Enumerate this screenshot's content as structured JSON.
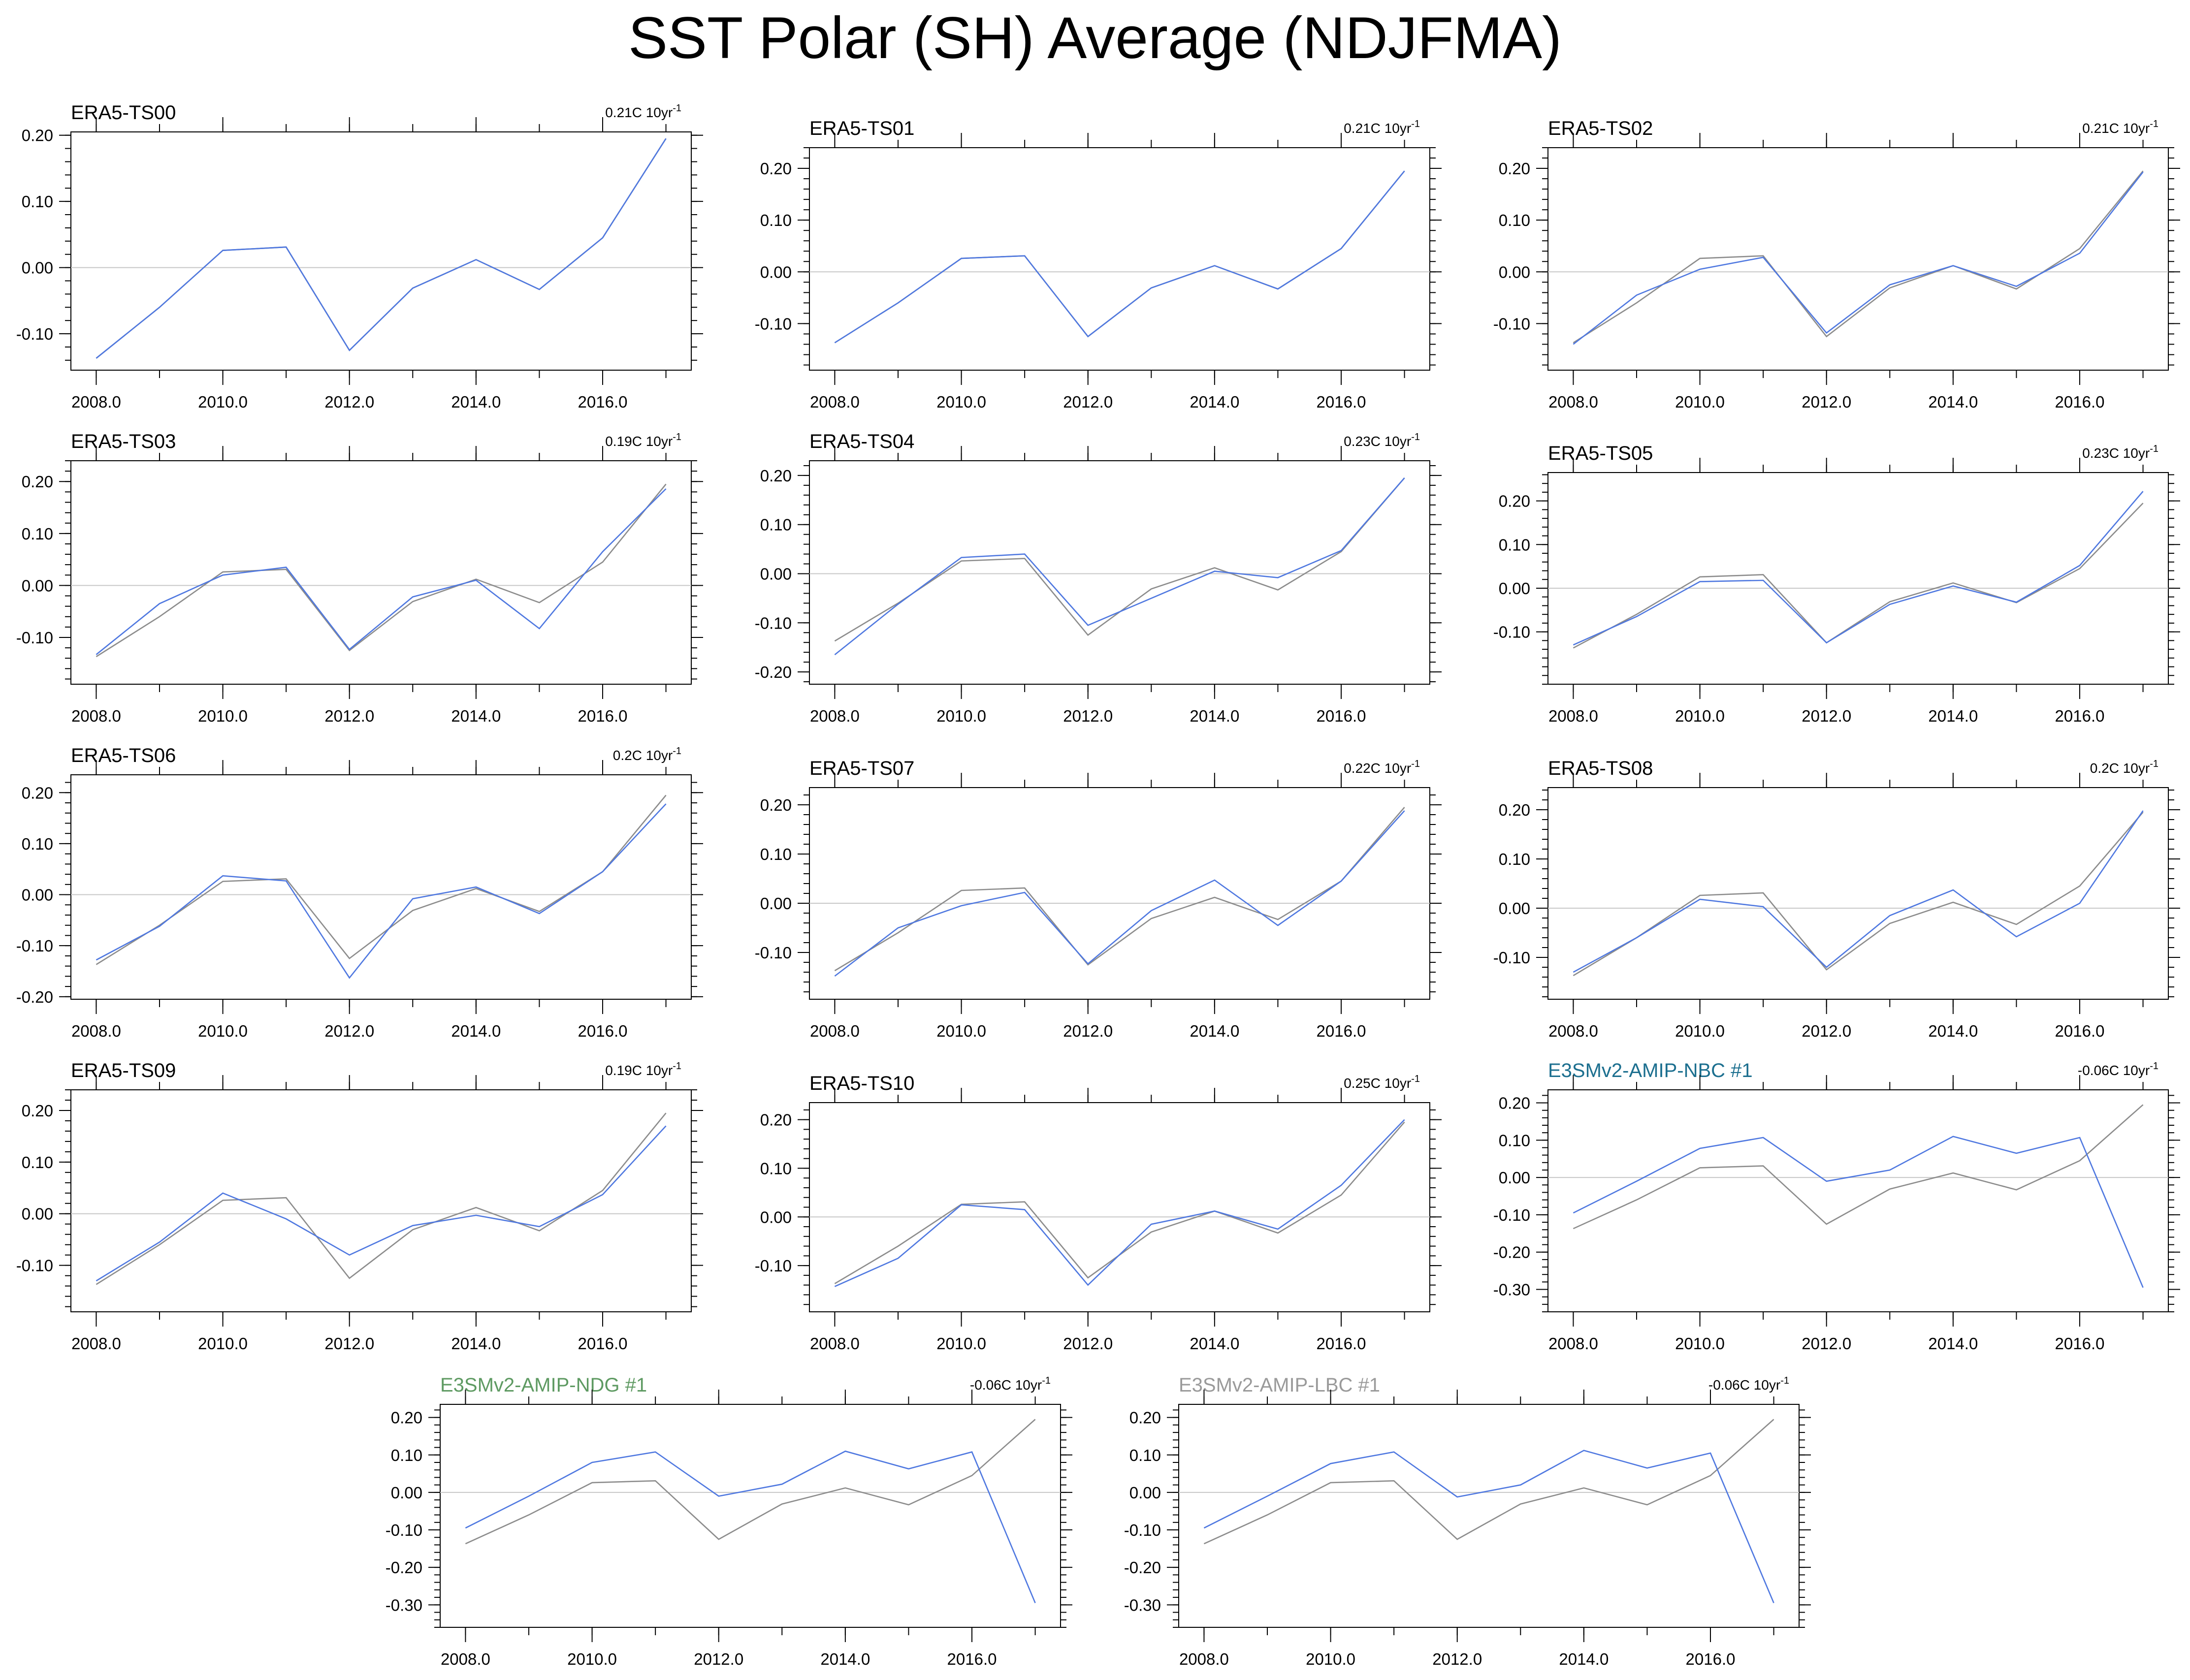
{
  "title": "SST Polar (SH) Average (NDJFMA)",
  "colors": {
    "model": "#4f78e0",
    "reference": "#8c8c8c",
    "zero_line": "#c8c8c8",
    "nbc_title": "#1c6f8f",
    "ndg_title": "#5e9a62",
    "lbc_title": "#9a9a9a"
  },
  "chart_data": [
    {
      "type": "line",
      "title": "ERA5-TS00",
      "trend": "0.21C 10yr",
      "trend_sup": "-1",
      "title_color": "#000000",
      "xlim": [
        2007.6,
        2017.4
      ],
      "ylim": [
        -0.155,
        0.205
      ],
      "xticks": [
        2008,
        2010,
        2012,
        2014,
        2016
      ],
      "xtick_labels": [
        "2008.0",
        "2010.0",
        "2012.0",
        "2014.0",
        "2016.0"
      ],
      "yticks": [
        -0.1,
        0,
        0.1,
        0.2
      ],
      "ytick_labels": [
        "-0.10",
        "0.00",
        "0.10",
        "0.20"
      ],
      "x": [
        2008,
        2009,
        2010,
        2011,
        2012,
        2013,
        2014,
        2015,
        2016,
        2017
      ],
      "series": [
        {
          "name": "reference",
          "values": [
            -0.137,
            -0.06,
            0.026,
            0.031,
            -0.125,
            -0.031,
            0.012,
            -0.033,
            0.045,
            0.195
          ]
        },
        {
          "name": "model",
          "values": [
            -0.137,
            -0.06,
            0.026,
            0.031,
            -0.125,
            -0.031,
            0.012,
            -0.033,
            0.045,
            0.195
          ]
        }
      ]
    },
    {
      "type": "line",
      "title": "ERA5-TS01",
      "trend": "0.21C 10yr",
      "trend_sup": "-1",
      "title_color": "#000000",
      "xlim": [
        2007.6,
        2017.4
      ],
      "ylim": [
        -0.19,
        0.24
      ],
      "xticks": [
        2008,
        2010,
        2012,
        2014,
        2016
      ],
      "xtick_labels": [
        "2008.0",
        "2010.0",
        "2012.0",
        "2014.0",
        "2016.0"
      ],
      "yticks": [
        -0.1,
        0,
        0.1,
        0.2
      ],
      "ytick_labels": [
        "-0.10",
        "0.00",
        "0.10",
        "0.20"
      ],
      "x": [
        2008,
        2009,
        2010,
        2011,
        2012,
        2013,
        2014,
        2015,
        2016,
        2017
      ],
      "series": [
        {
          "name": "reference",
          "values": [
            -0.137,
            -0.06,
            0.026,
            0.031,
            -0.125,
            -0.031,
            0.012,
            -0.033,
            0.045,
            0.195
          ]
        },
        {
          "name": "model",
          "values": [
            -0.137,
            -0.06,
            0.026,
            0.031,
            -0.125,
            -0.031,
            0.012,
            -0.033,
            0.045,
            0.195
          ]
        }
      ]
    },
    {
      "type": "line",
      "title": "ERA5-TS02",
      "trend": "0.21C 10yr",
      "trend_sup": "-1",
      "title_color": "#000000",
      "xlim": [
        2007.6,
        2017.4
      ],
      "ylim": [
        -0.19,
        0.24
      ],
      "xticks": [
        2008,
        2010,
        2012,
        2014,
        2016
      ],
      "xtick_labels": [
        "2008.0",
        "2010.0",
        "2012.0",
        "2014.0",
        "2016.0"
      ],
      "yticks": [
        -0.1,
        0,
        0.1,
        0.2
      ],
      "ytick_labels": [
        "-0.10",
        "0.00",
        "0.10",
        "0.20"
      ],
      "x": [
        2008,
        2009,
        2010,
        2011,
        2012,
        2013,
        2014,
        2015,
        2016,
        2017
      ],
      "series": [
        {
          "name": "reference",
          "values": [
            -0.137,
            -0.06,
            0.026,
            0.031,
            -0.125,
            -0.031,
            0.012,
            -0.033,
            0.045,
            0.195
          ]
        },
        {
          "name": "model",
          "values": [
            -0.14,
            -0.045,
            0.005,
            0.028,
            -0.118,
            -0.025,
            0.012,
            -0.028,
            0.036,
            0.193
          ]
        }
      ]
    },
    {
      "type": "line",
      "title": "ERA5-TS03",
      "trend": "0.19C 10yr",
      "trend_sup": "-1",
      "title_color": "#000000",
      "xlim": [
        2007.6,
        2017.4
      ],
      "ylim": [
        -0.19,
        0.24
      ],
      "xticks": [
        2008,
        2010,
        2012,
        2014,
        2016
      ],
      "xtick_labels": [
        "2008.0",
        "2010.0",
        "2012.0",
        "2014.0",
        "2016.0"
      ],
      "yticks": [
        -0.1,
        0,
        0.1,
        0.2
      ],
      "ytick_labels": [
        "-0.10",
        "0.00",
        "0.10",
        "0.20"
      ],
      "x": [
        2008,
        2009,
        2010,
        2011,
        2012,
        2013,
        2014,
        2015,
        2016,
        2017
      ],
      "series": [
        {
          "name": "reference",
          "values": [
            -0.137,
            -0.06,
            0.026,
            0.031,
            -0.125,
            -0.031,
            0.012,
            -0.033,
            0.045,
            0.195
          ]
        },
        {
          "name": "model",
          "values": [
            -0.133,
            -0.035,
            0.02,
            0.035,
            -0.123,
            -0.022,
            0.01,
            -0.083,
            0.065,
            0.186
          ]
        }
      ]
    },
    {
      "type": "line",
      "title": "ERA5-TS04",
      "trend": "0.23C 10yr",
      "trend_sup": "-1",
      "title_color": "#000000",
      "xlim": [
        2007.6,
        2017.4
      ],
      "ylim": [
        -0.225,
        0.23
      ],
      "xticks": [
        2008,
        2010,
        2012,
        2014,
        2016
      ],
      "xtick_labels": [
        "2008.0",
        "2010.0",
        "2012.0",
        "2014.0",
        "2016.0"
      ],
      "yticks": [
        -0.2,
        -0.1,
        0,
        0.1,
        0.2
      ],
      "ytick_labels": [
        "-0.20",
        "-0.10",
        "0.00",
        "0.10",
        "0.20"
      ],
      "x": [
        2008,
        2009,
        2010,
        2011,
        2012,
        2013,
        2014,
        2015,
        2016,
        2017
      ],
      "series": [
        {
          "name": "reference",
          "values": [
            -0.137,
            -0.06,
            0.026,
            0.031,
            -0.125,
            -0.031,
            0.012,
            -0.033,
            0.045,
            0.195
          ]
        },
        {
          "name": "model",
          "values": [
            -0.165,
            -0.062,
            0.033,
            0.04,
            -0.105,
            -0.05,
            0.005,
            -0.008,
            0.047,
            0.195
          ]
        }
      ]
    },
    {
      "type": "line",
      "title": "ERA5-TS05",
      "trend": "0.23C 10yr",
      "trend_sup": "-1",
      "title_color": "#000000",
      "xlim": [
        2007.6,
        2017.4
      ],
      "ylim": [
        -0.22,
        0.265
      ],
      "xticks": [
        2008,
        2010,
        2012,
        2014,
        2016
      ],
      "xtick_labels": [
        "2008.0",
        "2010.0",
        "2012.0",
        "2014.0",
        "2016.0"
      ],
      "yticks": [
        -0.1,
        0,
        0.1,
        0.2
      ],
      "ytick_labels": [
        "-0.10",
        "0.00",
        "0.10",
        "0.20"
      ],
      "x": [
        2008,
        2009,
        2010,
        2011,
        2012,
        2013,
        2014,
        2015,
        2016,
        2017
      ],
      "series": [
        {
          "name": "reference",
          "values": [
            -0.137,
            -0.06,
            0.026,
            0.031,
            -0.125,
            -0.031,
            0.012,
            -0.033,
            0.045,
            0.195
          ]
        },
        {
          "name": "model",
          "values": [
            -0.13,
            -0.065,
            0.015,
            0.018,
            -0.125,
            -0.037,
            0.005,
            -0.032,
            0.052,
            0.222
          ]
        }
      ]
    },
    {
      "type": "line",
      "title": "ERA5-TS06",
      "trend": "0.2C 10yr",
      "trend_sup": "-1",
      "title_color": "#000000",
      "xlim": [
        2007.6,
        2017.4
      ],
      "ylim": [
        -0.205,
        0.235
      ],
      "xticks": [
        2008,
        2010,
        2012,
        2014,
        2016
      ],
      "xtick_labels": [
        "2008.0",
        "2010.0",
        "2012.0",
        "2014.0",
        "2016.0"
      ],
      "yticks": [
        -0.2,
        -0.1,
        0,
        0.1,
        0.2
      ],
      "ytick_labels": [
        "-0.20",
        "-0.10",
        "0.00",
        "0.10",
        "0.20"
      ],
      "x": [
        2008,
        2009,
        2010,
        2011,
        2012,
        2013,
        2014,
        2015,
        2016,
        2017
      ],
      "series": [
        {
          "name": "reference",
          "values": [
            -0.137,
            -0.06,
            0.026,
            0.031,
            -0.125,
            -0.031,
            0.012,
            -0.033,
            0.045,
            0.195
          ]
        },
        {
          "name": "model",
          "values": [
            -0.128,
            -0.062,
            0.037,
            0.027,
            -0.163,
            -0.008,
            0.015,
            -0.037,
            0.045,
            0.178
          ]
        }
      ]
    },
    {
      "type": "line",
      "title": "ERA5-TS07",
      "trend": "0.22C 10yr",
      "trend_sup": "-1",
      "title_color": "#000000",
      "xlim": [
        2007.6,
        2017.4
      ],
      "ylim": [
        -0.195,
        0.235
      ],
      "xticks": [
        2008,
        2010,
        2012,
        2014,
        2016
      ],
      "xtick_labels": [
        "2008.0",
        "2010.0",
        "2012.0",
        "2014.0",
        "2016.0"
      ],
      "yticks": [
        -0.1,
        0,
        0.1,
        0.2
      ],
      "ytick_labels": [
        "-0.10",
        "0.00",
        "0.10",
        "0.20"
      ],
      "x": [
        2008,
        2009,
        2010,
        2011,
        2012,
        2013,
        2014,
        2015,
        2016,
        2017
      ],
      "series": [
        {
          "name": "reference",
          "values": [
            -0.137,
            -0.06,
            0.026,
            0.031,
            -0.125,
            -0.031,
            0.012,
            -0.033,
            0.045,
            0.195
          ]
        },
        {
          "name": "model",
          "values": [
            -0.148,
            -0.05,
            -0.005,
            0.022,
            -0.123,
            -0.015,
            0.047,
            -0.045,
            0.045,
            0.188
          ]
        }
      ]
    },
    {
      "type": "line",
      "title": "ERA5-TS08",
      "trend": "0.2C 10yr",
      "trend_sup": "-1",
      "title_color": "#000000",
      "xlim": [
        2007.6,
        2017.4
      ],
      "ylim": [
        -0.185,
        0.245
      ],
      "xticks": [
        2008,
        2010,
        2012,
        2014,
        2016
      ],
      "xtick_labels": [
        "2008.0",
        "2010.0",
        "2012.0",
        "2014.0",
        "2016.0"
      ],
      "yticks": [
        -0.1,
        0,
        0.1,
        0.2
      ],
      "ytick_labels": [
        "-0.10",
        "0.00",
        "0.10",
        "0.20"
      ],
      "x": [
        2008,
        2009,
        2010,
        2011,
        2012,
        2013,
        2014,
        2015,
        2016,
        2017
      ],
      "series": [
        {
          "name": "reference",
          "values": [
            -0.137,
            -0.06,
            0.026,
            0.031,
            -0.125,
            -0.031,
            0.012,
            -0.033,
            0.045,
            0.195
          ]
        },
        {
          "name": "model",
          "values": [
            -0.13,
            -0.06,
            0.018,
            0.003,
            -0.12,
            -0.015,
            0.037,
            -0.058,
            0.01,
            0.198
          ]
        }
      ]
    },
    {
      "type": "line",
      "title": "ERA5-TS09",
      "trend": "0.19C 10yr",
      "trend_sup": "-1",
      "title_color": "#000000",
      "xlim": [
        2007.6,
        2017.4
      ],
      "ylim": [
        -0.19,
        0.24
      ],
      "xticks": [
        2008,
        2010,
        2012,
        2014,
        2016
      ],
      "xtick_labels": [
        "2008.0",
        "2010.0",
        "2012.0",
        "2014.0",
        "2016.0"
      ],
      "yticks": [
        -0.1,
        0,
        0.1,
        0.2
      ],
      "ytick_labels": [
        "-0.10",
        "0.00",
        "0.10",
        "0.20"
      ],
      "x": [
        2008,
        2009,
        2010,
        2011,
        2012,
        2013,
        2014,
        2015,
        2016,
        2017
      ],
      "series": [
        {
          "name": "reference",
          "values": [
            -0.137,
            -0.06,
            0.026,
            0.031,
            -0.125,
            -0.031,
            0.012,
            -0.033,
            0.045,
            0.195
          ]
        },
        {
          "name": "model",
          "values": [
            -0.13,
            -0.055,
            0.04,
            -0.01,
            -0.08,
            -0.023,
            -0.003,
            -0.025,
            0.037,
            0.17
          ]
        }
      ]
    },
    {
      "type": "line",
      "title": "ERA5-TS10",
      "trend": "0.25C 10yr",
      "trend_sup": "-1",
      "title_color": "#000000",
      "xlim": [
        2007.6,
        2017.4
      ],
      "ylim": [
        -0.195,
        0.235
      ],
      "xticks": [
        2008,
        2010,
        2012,
        2014,
        2016
      ],
      "xtick_labels": [
        "2008.0",
        "2010.0",
        "2012.0",
        "2014.0",
        "2016.0"
      ],
      "yticks": [
        -0.1,
        0,
        0.1,
        0.2
      ],
      "ytick_labels": [
        "-0.10",
        "0.00",
        "0.10",
        "0.20"
      ],
      "x": [
        2008,
        2009,
        2010,
        2011,
        2012,
        2013,
        2014,
        2015,
        2016,
        2017
      ],
      "series": [
        {
          "name": "reference",
          "values": [
            -0.137,
            -0.06,
            0.026,
            0.031,
            -0.125,
            -0.031,
            0.012,
            -0.033,
            0.045,
            0.195
          ]
        },
        {
          "name": "model",
          "values": [
            -0.143,
            -0.085,
            0.025,
            0.015,
            -0.14,
            -0.015,
            0.012,
            -0.025,
            0.065,
            0.2
          ]
        }
      ]
    },
    {
      "type": "line",
      "title": "E3SMv2-AMIP-NBC #1",
      "trend": "-0.06C 10yr",
      "trend_sup": "-1",
      "title_color": "#1c6f8f",
      "xlim": [
        2007.6,
        2017.4
      ],
      "ylim": [
        -0.36,
        0.235
      ],
      "xticks": [
        2008,
        2010,
        2012,
        2014,
        2016
      ],
      "xtick_labels": [
        "2008.0",
        "2010.0",
        "2012.0",
        "2014.0",
        "2016.0"
      ],
      "yticks": [
        -0.3,
        -0.2,
        -0.1,
        0,
        0.1,
        0.2
      ],
      "ytick_labels": [
        "-0.30",
        "-0.20",
        "-0.10",
        "0.00",
        "0.10",
        "0.20"
      ],
      "x": [
        2008,
        2009,
        2010,
        2011,
        2012,
        2013,
        2014,
        2015,
        2016,
        2017
      ],
      "series": [
        {
          "name": "reference",
          "values": [
            -0.137,
            -0.06,
            0.026,
            0.031,
            -0.125,
            -0.031,
            0.012,
            -0.033,
            0.045,
            0.195
          ]
        },
        {
          "name": "model",
          "values": [
            -0.095,
            -0.01,
            0.078,
            0.107,
            -0.01,
            0.02,
            0.11,
            0.065,
            0.107,
            -0.295
          ]
        }
      ]
    },
    {
      "type": "line",
      "title": "E3SMv2-AMIP-NDG #1",
      "trend": "-0.06C 10yr",
      "trend_sup": "-1",
      "title_color": "#5e9a62",
      "xlim": [
        2007.6,
        2017.4
      ],
      "ylim": [
        -0.36,
        0.235
      ],
      "xticks": [
        2008,
        2010,
        2012,
        2014,
        2016
      ],
      "xtick_labels": [
        "2008.0",
        "2010.0",
        "2012.0",
        "2014.0",
        "2016.0"
      ],
      "yticks": [
        -0.3,
        -0.2,
        -0.1,
        0,
        0.1,
        0.2
      ],
      "ytick_labels": [
        "-0.30",
        "-0.20",
        "-0.10",
        "0.00",
        "0.10",
        "0.20"
      ],
      "x": [
        2008,
        2009,
        2010,
        2011,
        2012,
        2013,
        2014,
        2015,
        2016,
        2017
      ],
      "series": [
        {
          "name": "reference",
          "values": [
            -0.137,
            -0.06,
            0.026,
            0.031,
            -0.125,
            -0.031,
            0.012,
            -0.033,
            0.045,
            0.195
          ]
        },
        {
          "name": "model",
          "values": [
            -0.095,
            -0.01,
            0.08,
            0.108,
            -0.01,
            0.022,
            0.11,
            0.063,
            0.108,
            -0.295
          ]
        }
      ]
    },
    {
      "type": "line",
      "title": "E3SMv2-AMIP-LBC #1",
      "trend": "-0.06C 10yr",
      "trend_sup": "-1",
      "title_color": "#9a9a9a",
      "xlim": [
        2007.6,
        2017.4
      ],
      "ylim": [
        -0.36,
        0.235
      ],
      "xticks": [
        2008,
        2010,
        2012,
        2014,
        2016
      ],
      "xtick_labels": [
        "2008.0",
        "2010.0",
        "2012.0",
        "2014.0",
        "2016.0"
      ],
      "yticks": [
        -0.3,
        -0.2,
        -0.1,
        0,
        0.1,
        0.2
      ],
      "ytick_labels": [
        "-0.30",
        "-0.20",
        "-0.10",
        "0.00",
        "0.10",
        "0.20"
      ],
      "x": [
        2008,
        2009,
        2010,
        2011,
        2012,
        2013,
        2014,
        2015,
        2016,
        2017
      ],
      "series": [
        {
          "name": "reference",
          "values": [
            -0.137,
            -0.06,
            0.026,
            0.031,
            -0.125,
            -0.031,
            0.012,
            -0.033,
            0.045,
            0.195
          ]
        },
        {
          "name": "model",
          "values": [
            -0.095,
            -0.01,
            0.077,
            0.108,
            -0.012,
            0.02,
            0.112,
            0.065,
            0.105,
            -0.295
          ]
        }
      ]
    }
  ]
}
